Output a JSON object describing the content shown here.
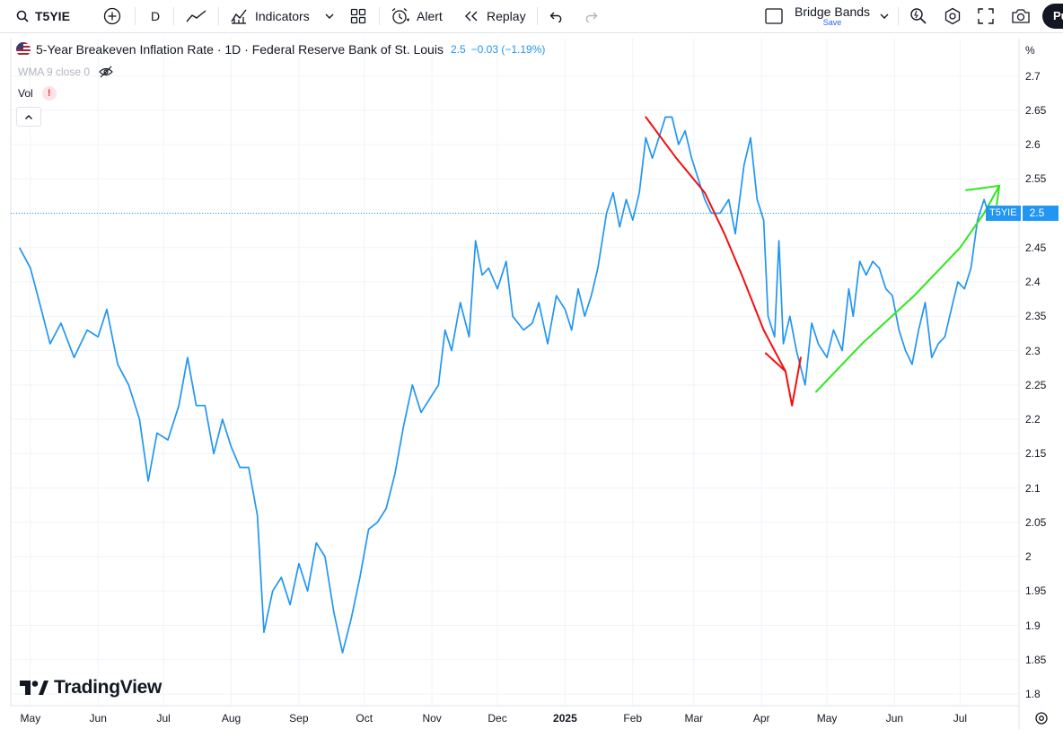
{
  "toolbar": {
    "symbol": "T5YIE",
    "interval": "D",
    "indicators_label": "Indicators",
    "alert_label": "Alert",
    "replay_label": "Replay",
    "layout_name": "Bridge Bands",
    "layout_status": "Save",
    "publish_label": "Pu"
  },
  "legend": {
    "title": "5-Year Breakeven Inflation Rate · 1D · Federal Reserve Bank of St. Louis",
    "last": "2.5",
    "change": "−0.03 (−1.19%)",
    "wma": "WMA 9 close 0",
    "vol": "Vol",
    "vol_warning": "!"
  },
  "brand": "TradingView",
  "price_tag": {
    "symbol": "T5YIE",
    "value": "2.5"
  },
  "y_axis": {
    "unit": "%",
    "ticks": [
      "2.7",
      "2.65",
      "2.6",
      "2.55",
      "2.5",
      "2.45",
      "2.4",
      "2.35",
      "2.3",
      "2.25",
      "2.2",
      "2.15",
      "2.1",
      "2.05",
      "2",
      "1.95",
      "1.9",
      "1.85",
      "1.8"
    ]
  },
  "x_axis": {
    "labels": [
      "May",
      "Jun",
      "Jul",
      "Aug",
      "Sep",
      "Oct",
      "Nov",
      "Dec",
      "2025",
      "Feb",
      "Mar",
      "Apr",
      "May",
      "Jun",
      "Jul"
    ]
  },
  "colors": {
    "series": "#2196f3",
    "annotation_down": "#f20f0f",
    "annotation_up": "#2fe61f",
    "last_price_line": "#2196f3"
  },
  "chart_data": {
    "type": "line",
    "ylabel": "%",
    "ylim": [
      1.78,
      2.72
    ],
    "x_range": [
      "2024-04-22",
      "2025-07-28"
    ],
    "series": [
      {
        "name": "T5YIE",
        "points": [
          [
            "2024-04-26",
            2.45
          ],
          [
            "2024-05-01",
            2.42
          ],
          [
            "2024-05-06",
            2.36
          ],
          [
            "2024-05-10",
            2.31
          ],
          [
            "2024-05-15",
            2.34
          ],
          [
            "2024-05-21",
            2.29
          ],
          [
            "2024-05-27",
            2.33
          ],
          [
            "2024-06-01",
            2.32
          ],
          [
            "2024-06-05",
            2.36
          ],
          [
            "2024-06-10",
            2.28
          ],
          [
            "2024-06-15",
            2.25
          ],
          [
            "2024-06-20",
            2.2
          ],
          [
            "2024-06-24",
            2.11
          ],
          [
            "2024-06-28",
            2.18
          ],
          [
            "2024-07-03",
            2.17
          ],
          [
            "2024-07-08",
            2.22
          ],
          [
            "2024-07-12",
            2.29
          ],
          [
            "2024-07-16",
            2.22
          ],
          [
            "2024-07-20",
            2.22
          ],
          [
            "2024-07-24",
            2.15
          ],
          [
            "2024-07-28",
            2.2
          ],
          [
            "2024-08-01",
            2.16
          ],
          [
            "2024-08-05",
            2.13
          ],
          [
            "2024-08-09",
            2.13
          ],
          [
            "2024-08-13",
            2.06
          ],
          [
            "2024-08-16",
            1.89
          ],
          [
            "2024-08-20",
            1.95
          ],
          [
            "2024-08-24",
            1.97
          ],
          [
            "2024-08-28",
            1.93
          ],
          [
            "2024-09-01",
            1.99
          ],
          [
            "2024-09-05",
            1.95
          ],
          [
            "2024-09-09",
            2.02
          ],
          [
            "2024-09-13",
            2.0
          ],
          [
            "2024-09-17",
            1.92
          ],
          [
            "2024-09-21",
            1.86
          ],
          [
            "2024-09-25",
            1.91
          ],
          [
            "2024-09-29",
            1.97
          ],
          [
            "2024-10-03",
            2.04
          ],
          [
            "2024-10-07",
            2.05
          ],
          [
            "2024-10-11",
            2.07
          ],
          [
            "2024-10-15",
            2.12
          ],
          [
            "2024-10-19",
            2.19
          ],
          [
            "2024-10-23",
            2.25
          ],
          [
            "2024-10-27",
            2.21
          ],
          [
            "2024-10-31",
            2.23
          ],
          [
            "2024-11-04",
            2.25
          ],
          [
            "2024-11-07",
            2.33
          ],
          [
            "2024-11-10",
            2.3
          ],
          [
            "2024-11-14",
            2.37
          ],
          [
            "2024-11-18",
            2.32
          ],
          [
            "2024-11-21",
            2.46
          ],
          [
            "2024-11-24",
            2.41
          ],
          [
            "2024-11-27",
            2.42
          ],
          [
            "2024-12-01",
            2.39
          ],
          [
            "2024-12-05",
            2.43
          ],
          [
            "2024-12-08",
            2.35
          ],
          [
            "2024-12-13",
            2.33
          ],
          [
            "2024-12-17",
            2.34
          ],
          [
            "2024-12-20",
            2.37
          ],
          [
            "2024-12-24",
            2.31
          ],
          [
            "2024-12-28",
            2.38
          ],
          [
            "2025-01-01",
            2.36
          ],
          [
            "2025-01-04",
            2.33
          ],
          [
            "2025-01-07",
            2.39
          ],
          [
            "2025-01-10",
            2.35
          ],
          [
            "2025-01-13",
            2.38
          ],
          [
            "2025-01-16",
            2.42
          ],
          [
            "2025-01-20",
            2.5
          ],
          [
            "2025-01-23",
            2.53
          ],
          [
            "2025-01-26",
            2.48
          ],
          [
            "2025-01-29",
            2.52
          ],
          [
            "2025-02-01",
            2.49
          ],
          [
            "2025-02-04",
            2.53
          ],
          [
            "2025-02-07",
            2.61
          ],
          [
            "2025-02-10",
            2.58
          ],
          [
            "2025-02-13",
            2.61
          ],
          [
            "2025-02-16",
            2.64
          ],
          [
            "2025-02-19",
            2.64
          ],
          [
            "2025-02-22",
            2.6
          ],
          [
            "2025-02-25",
            2.62
          ],
          [
            "2025-02-28",
            2.58
          ],
          [
            "2025-03-03",
            2.55
          ],
          [
            "2025-03-06",
            2.52
          ],
          [
            "2025-03-09",
            2.5
          ],
          [
            "2025-03-13",
            2.5
          ],
          [
            "2025-03-17",
            2.52
          ],
          [
            "2025-03-20",
            2.47
          ],
          [
            "2025-03-24",
            2.57
          ],
          [
            "2025-03-27",
            2.61
          ],
          [
            "2025-03-30",
            2.52
          ],
          [
            "2025-04-02",
            2.49
          ],
          [
            "2025-04-04",
            2.35
          ],
          [
            "2025-04-07",
            2.32
          ],
          [
            "2025-04-09",
            2.46
          ],
          [
            "2025-04-11",
            2.31
          ],
          [
            "2025-04-14",
            2.35
          ],
          [
            "2025-04-17",
            2.3
          ],
          [
            "2025-04-21",
            2.25
          ],
          [
            "2025-04-24",
            2.34
          ],
          [
            "2025-04-27",
            2.31
          ],
          [
            "2025-05-01",
            2.29
          ],
          [
            "2025-05-04",
            2.33
          ],
          [
            "2025-05-08",
            2.3
          ],
          [
            "2025-05-11",
            2.39
          ],
          [
            "2025-05-13",
            2.35
          ],
          [
            "2025-05-16",
            2.43
          ],
          [
            "2025-05-19",
            2.41
          ],
          [
            "2025-05-22",
            2.43
          ],
          [
            "2025-05-25",
            2.42
          ],
          [
            "2025-05-28",
            2.39
          ],
          [
            "2025-05-31",
            2.38
          ],
          [
            "2025-06-03",
            2.33
          ],
          [
            "2025-06-06",
            2.3
          ],
          [
            "2025-06-09",
            2.28
          ],
          [
            "2025-06-12",
            2.33
          ],
          [
            "2025-06-15",
            2.37
          ],
          [
            "2025-06-18",
            2.29
          ],
          [
            "2025-06-21",
            2.31
          ],
          [
            "2025-06-24",
            2.32
          ],
          [
            "2025-06-27",
            2.36
          ],
          [
            "2025-06-30",
            2.4
          ],
          [
            "2025-07-03",
            2.39
          ],
          [
            "2025-07-06",
            2.42
          ],
          [
            "2025-07-09",
            2.49
          ],
          [
            "2025-07-12",
            2.52
          ],
          [
            "2025-07-14",
            2.5
          ]
        ]
      }
    ],
    "last_value": 2.5,
    "annotations": [
      {
        "kind": "freehand-arrow-down",
        "color": "red",
        "points": [
          [
            "2025-02-07",
            2.64
          ],
          [
            "2025-02-21",
            2.58
          ],
          [
            "2025-03-06",
            2.53
          ],
          [
            "2025-03-15",
            2.47
          ],
          [
            "2025-03-23",
            2.41
          ],
          [
            "2025-04-02",
            2.33
          ],
          [
            "2025-04-12",
            2.27
          ],
          [
            "2025-04-15",
            2.22
          ],
          [
            "2025-04-19",
            2.29
          ]
        ]
      },
      {
        "kind": "freehand-arrow-up",
        "color": "green",
        "points": [
          [
            "2025-04-26",
            2.24
          ],
          [
            "2025-05-17",
            2.31
          ],
          [
            "2025-06-10",
            2.38
          ],
          [
            "2025-07-01",
            2.45
          ],
          [
            "2025-07-12",
            2.5
          ],
          [
            "2025-07-19",
            2.54
          ]
        ]
      }
    ]
  }
}
